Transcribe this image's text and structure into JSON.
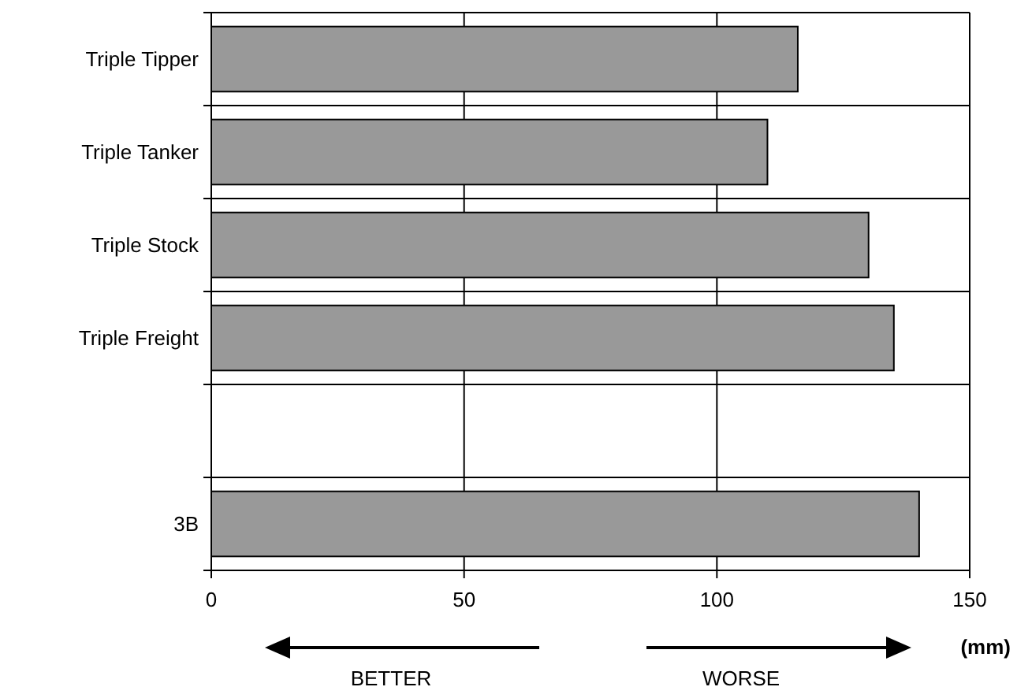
{
  "chart_data": {
    "type": "bar",
    "orientation": "horizontal",
    "categories": [
      "Triple Tipper",
      "Triple Tanker",
      "Triple Stock",
      "Triple Freight",
      null,
      "3B"
    ],
    "values": [
      116,
      110,
      130,
      135,
      null,
      140
    ],
    "color": "#999999",
    "xlim": [
      0,
      150
    ],
    "xticks": [
      0,
      50,
      100,
      150
    ],
    "xlabel": "(mm)",
    "grid": true,
    "annotations": [
      "BETTER",
      "WORSE"
    ]
  }
}
